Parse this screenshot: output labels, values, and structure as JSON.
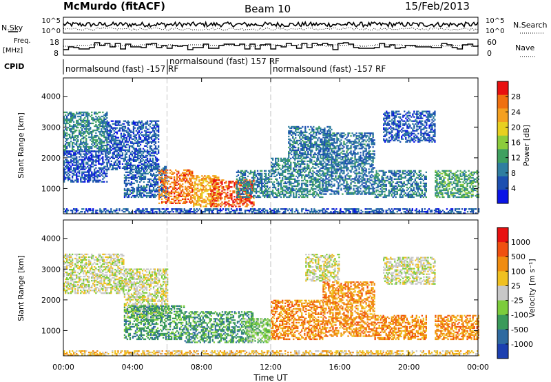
{
  "header": {
    "station": "McMurdo (fitACF)",
    "beam": "Beam 10",
    "date": "15/Feb/2013"
  },
  "noise": {
    "left_label": "N.Sky",
    "right_label": "N.Search",
    "left_ticks": [
      "10^5",
      "10^0"
    ],
    "right_ticks": [
      "10^5",
      "10^0"
    ]
  },
  "freq": {
    "label_line1": "Freq.",
    "label_line2": "[MHz]",
    "left_ticks": [
      "18",
      "8"
    ],
    "right_ticks": [
      "60",
      "0"
    ],
    "right_label": "Nave"
  },
  "cpid": {
    "label": "CPID",
    "programs": [
      {
        "text": "normalsound (fast) -157 RF",
        "row": 1
      },
      {
        "text": "normalsound (fast) 157 RF",
        "row": 0
      },
      {
        "text": "normalsound (fast) -157 RF",
        "row": 1
      }
    ]
  },
  "chart_data": [
    {
      "type": "heatmap",
      "title": "Power",
      "ylabel": "Slant Range [km]",
      "xlabel": "Time UT",
      "ylim": [
        180,
        4600
      ],
      "yticks": [
        "4000",
        "3000",
        "2000",
        "1000"
      ],
      "xticks": [
        "00:00",
        "04:00",
        "08:00",
        "12:00",
        "16:00",
        "20:00",
        "00:00"
      ],
      "xlim_hours": [
        0,
        24
      ],
      "colorbar_label": "Power [dB]",
      "colorbar_ticks": [
        "28",
        "24",
        "20",
        "16",
        "12",
        "8",
        "4"
      ],
      "colorbar_range": [
        0,
        32
      ],
      "colors": [
        "#0a14e6",
        "#1c4fb0",
        "#2f7ea0",
        "#3fa060",
        "#8ccc3c",
        "#e8d020",
        "#f4a020",
        "#f07010",
        "#e81010"
      ],
      "regions": [
        {
          "t0": 0.0,
          "t1": 2.5,
          "r0": 2200,
          "r1": 3500,
          "level": 10
        },
        {
          "t0": 0.0,
          "t1": 2.5,
          "r0": 1200,
          "r1": 2200,
          "level": 5
        },
        {
          "t0": 2.5,
          "t1": 5.5,
          "r0": 1600,
          "r1": 3200,
          "level": 6
        },
        {
          "t0": 3.5,
          "t1": 6.0,
          "r0": 700,
          "r1": 1700,
          "level": 7
        },
        {
          "t0": 5.5,
          "t1": 7.5,
          "r0": 500,
          "r1": 1600,
          "level": 26
        },
        {
          "t0": 7.5,
          "t1": 9.0,
          "r0": 400,
          "r1": 1400,
          "level": 22
        },
        {
          "t0": 8.5,
          "t1": 11.0,
          "r0": 400,
          "r1": 1300,
          "level": 28
        },
        {
          "t0": 10.0,
          "t1": 12.0,
          "r0": 700,
          "r1": 1600,
          "level": 9
        },
        {
          "t0": 12.0,
          "t1": 15.0,
          "r0": 700,
          "r1": 2000,
          "level": 10
        },
        {
          "t0": 13.0,
          "t1": 15.5,
          "r0": 2000,
          "r1": 3000,
          "level": 8
        },
        {
          "t0": 15.0,
          "t1": 18.0,
          "r0": 800,
          "r1": 2800,
          "level": 8
        },
        {
          "t0": 18.0,
          "t1": 21.0,
          "r0": 700,
          "r1": 1600,
          "level": 9
        },
        {
          "t0": 18.5,
          "t1": 21.5,
          "r0": 2500,
          "r1": 3500,
          "level": 6
        },
        {
          "t0": 21.5,
          "t1": 24.0,
          "r0": 700,
          "r1": 1600,
          "level": 12
        },
        {
          "t0": 0.0,
          "t1": 24.0,
          "r0": 180,
          "r1": 330,
          "level": 6
        }
      ]
    },
    {
      "type": "heatmap",
      "title": "Velocity",
      "ylabel": "Slant Range [km]",
      "xlabel": "Time UT",
      "ylim": [
        180,
        4600
      ],
      "yticks": [
        "4000",
        "3000",
        "2000",
        "1000"
      ],
      "xticks": [
        "00:00",
        "04:00",
        "08:00",
        "12:00",
        "16:00",
        "20:00",
        "00:00"
      ],
      "xlim_hours": [
        0,
        24
      ],
      "colorbar_label": "Velocity [m s⁻¹]",
      "colorbar_ticks": [
        "1000",
        "500",
        "100",
        "25",
        "-25",
        "-100",
        "-500",
        "-1000"
      ],
      "colors": [
        "#1c3fb0",
        "#2f6aa0",
        "#3a9a5a",
        "#7ccc3c",
        "#c8c8c8",
        "#f0c020",
        "#f08c10",
        "#f05010",
        "#e81010"
      ],
      "regions": [
        {
          "t0": 0.0,
          "t1": 3.5,
          "r0": 2200,
          "r1": 3500,
          "level": 4
        },
        {
          "t0": 3.5,
          "t1": 6.0,
          "r0": 1400,
          "r1": 3000,
          "level": 4
        },
        {
          "t0": 3.5,
          "t1": 7.0,
          "r0": 700,
          "r1": 1800,
          "level": 2
        },
        {
          "t0": 7.0,
          "t1": 11.0,
          "r0": 600,
          "r1": 1600,
          "level": 2
        },
        {
          "t0": 10.5,
          "t1": 12.0,
          "r0": 600,
          "r1": 1400,
          "level": 3
        },
        {
          "t0": 12.0,
          "t1": 15.0,
          "r0": 700,
          "r1": 2000,
          "level": 6
        },
        {
          "t0": 15.0,
          "t1": 18.0,
          "r0": 800,
          "r1": 2600,
          "level": 6
        },
        {
          "t0": 18.0,
          "t1": 21.0,
          "r0": 700,
          "r1": 1500,
          "level": 6
        },
        {
          "t0": 21.5,
          "t1": 24.0,
          "r0": 700,
          "r1": 1500,
          "level": 6
        },
        {
          "t0": 14.0,
          "t1": 16.0,
          "r0": 2600,
          "r1": 3500,
          "level": 4
        },
        {
          "t0": 18.5,
          "t1": 21.5,
          "r0": 2500,
          "r1": 3400,
          "level": 4
        },
        {
          "t0": 0.0,
          "t1": 24.0,
          "r0": 180,
          "r1": 330,
          "level": 5
        }
      ]
    }
  ],
  "dashed_markers_hours": [
    6.0,
    12.0
  ]
}
